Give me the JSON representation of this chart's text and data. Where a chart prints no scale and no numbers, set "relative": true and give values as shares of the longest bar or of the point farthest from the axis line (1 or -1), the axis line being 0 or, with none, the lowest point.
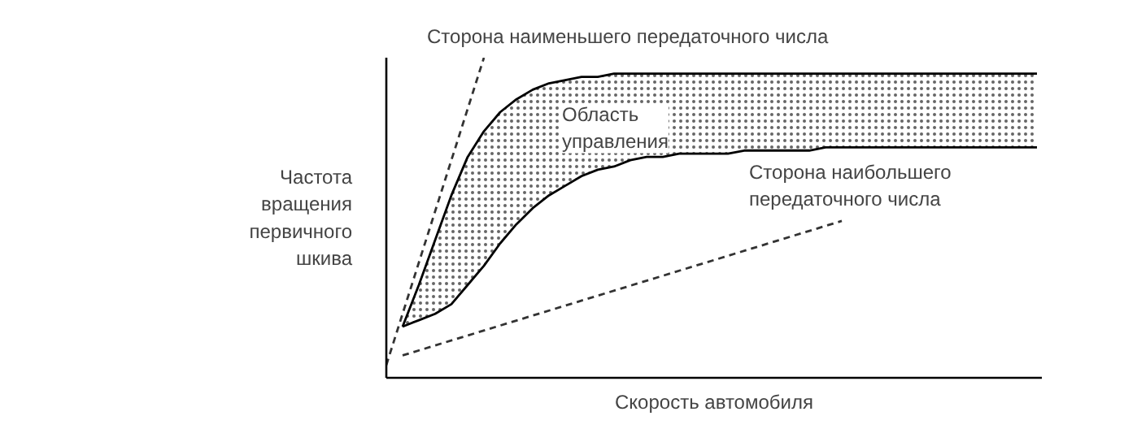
{
  "chart_data": {
    "type": "line",
    "relative": true,
    "xlabel": "Скорость автомобиля",
    "ylabel": "Частота вращения первичного шкива",
    "categories": [
      null,
      null,
      null,
      null,
      null,
      null,
      null,
      null,
      null,
      null,
      null,
      null,
      null,
      null,
      null,
      null,
      null,
      null,
      null,
      null,
      null,
      null,
      null,
      null,
      null,
      null,
      null,
      null,
      null,
      null,
      null,
      null,
      null,
      null,
      null,
      null,
      null,
      null,
      null,
      null,
      null
    ],
    "series": [
      {
        "color": "#000000",
        "line_style": "solid",
        "values": [
          null,
          0.16,
          0.29,
          0.43,
          0.57,
          0.69,
          0.77,
          0.83,
          0.87,
          0.9,
          0.92,
          0.93,
          0.94,
          0.94,
          0.95,
          0.95,
          0.95,
          0.95,
          0.95,
          0.95,
          0.95,
          0.95,
          0.95,
          0.95,
          0.95,
          0.95,
          0.95,
          0.95,
          0.95,
          0.95,
          0.95,
          0.95,
          0.95,
          0.95,
          0.95,
          0.95,
          0.95,
          0.95,
          0.95,
          0.95,
          0.95
        ]
      },
      {
        "color": "#000000",
        "line_style": "solid",
        "values": [
          null,
          0.16,
          0.18,
          0.2,
          0.23,
          0.29,
          0.35,
          0.42,
          0.48,
          0.53,
          0.57,
          0.6,
          0.63,
          0.65,
          0.66,
          0.68,
          0.69,
          0.69,
          0.7,
          0.7,
          0.7,
          0.7,
          0.71,
          0.71,
          0.71,
          0.71,
          0.71,
          0.72,
          0.72,
          0.72,
          0.72,
          0.72,
          0.72,
          0.72,
          0.72,
          0.72,
          0.72,
          0.72,
          0.72,
          0.72,
          0.72
        ],
        "lower": [
          null,
          0.16,
          0.18,
          0.2,
          0.23,
          0.29,
          0.35,
          0.42,
          0.48,
          0.53,
          0.57,
          0.6,
          0.63,
          0.65,
          0.66,
          0.68,
          0.69,
          0.69,
          0.7,
          0.7,
          0.7,
          0.7,
          0.71,
          0.71,
          0.71,
          0.71,
          0.71,
          0.72,
          0.72,
          0.72,
          0.72,
          0.72,
          0.72,
          0.72,
          0.72,
          0.72,
          0.72,
          0.72,
          0.72,
          0.72,
          0.72
        ],
        "upper": [
          null,
          0.16,
          0.29,
          0.43,
          0.57,
          0.69,
          0.77,
          0.83,
          0.87,
          0.9,
          0.92,
          0.93,
          0.94,
          0.94,
          0.95,
          0.95,
          0.95,
          0.95,
          0.95,
          0.95,
          0.95,
          0.95,
          0.95,
          0.95,
          0.95,
          0.95,
          0.95,
          0.95,
          0.95,
          0.95,
          0.95,
          0.95,
          0.95,
          0.95,
          0.95,
          0.95,
          0.95,
          0.95,
          0.95,
          0.95,
          0.95
        ]
      },
      {
        "color": "#333333",
        "line_style": "dashed",
        "values": [
          0.04,
          null,
          null,
          null,
          null,
          null,
          1.0,
          null,
          null,
          null,
          null,
          null,
          null,
          null,
          null,
          null,
          null,
          null,
          null,
          null,
          null,
          null,
          null,
          null,
          null,
          null,
          null,
          null,
          null,
          null,
          null,
          null,
          null,
          null,
          null,
          null,
          null,
          null,
          null,
          null,
          null
        ]
      },
      {
        "color": "#333333",
        "line_style": "dashed",
        "values": [
          null,
          0.07,
          null,
          null,
          null,
          null,
          null,
          null,
          null,
          null,
          null,
          null,
          null,
          null,
          null,
          null,
          null,
          null,
          null,
          null,
          null,
          null,
          null,
          null,
          null,
          null,
          null,
          null,
          0.49,
          null,
          null,
          null,
          null,
          null,
          null,
          null,
          null,
          null,
          null,
          null,
          null
        ]
      }
    ],
    "annotations": [
      "Сторона наименьшего передаточного числа",
      "Область управления",
      "Сторона наибольшего передаточного числа"
    ]
  }
}
